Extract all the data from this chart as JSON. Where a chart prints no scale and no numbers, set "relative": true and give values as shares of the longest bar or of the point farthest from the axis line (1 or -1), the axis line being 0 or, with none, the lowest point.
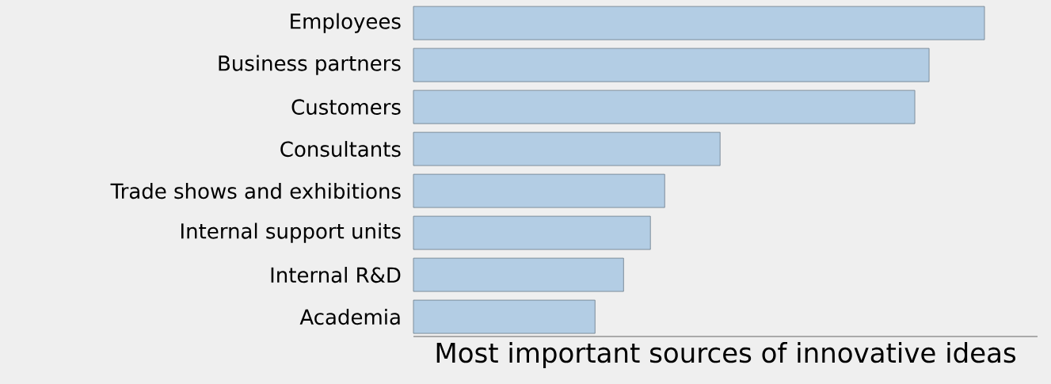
{
  "chart_data": {
    "type": "bar",
    "orientation": "horizontal",
    "relative": true,
    "title": "Most important sources of innovative ideas",
    "categories": [
      "Employees",
      "Business partners",
      "Customers",
      "Consultants",
      "Trade shows and exhibitions",
      "Internal support units",
      "Internal R&D",
      "Academia"
    ],
    "values": [
      1,
      0.903,
      0.878,
      0.537,
      0.44,
      0.415,
      0.368,
      0.318
    ],
    "color": "#b3cde4"
  }
}
